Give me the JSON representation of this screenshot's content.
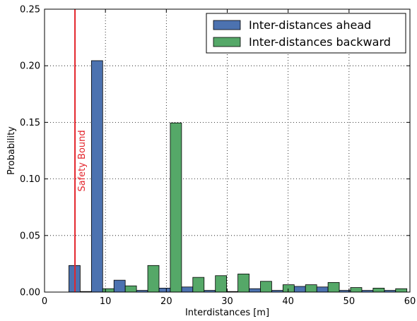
{
  "chart_data": {
    "type": "bar",
    "xlabel": "Interdistances [m]",
    "ylabel": "Probability",
    "xlim": [
      0,
      60
    ],
    "ylim": [
      0,
      0.25
    ],
    "xticks": [
      "0",
      "10",
      "20",
      "30",
      "40",
      "50",
      "60"
    ],
    "yticks": [
      "0.00",
      "0.05",
      "0.10",
      "0.15",
      "0.20",
      "0.25"
    ],
    "grid": true,
    "legend_position": "top-right",
    "bin_edges": [
      4,
      7.7,
      11.4,
      15.1,
      18.8,
      22.5,
      26.2,
      29.9,
      33.6,
      37.3,
      41.0,
      44.7,
      48.4,
      52.1,
      55.8,
      59.5
    ],
    "series": [
      {
        "name": "Inter-distances ahead",
        "color": "#4c72b0",
        "values": [
          0.0235,
          0.2045,
          0.0105,
          0.0015,
          0.0035,
          0.0045,
          0.0015,
          0.0005,
          0.003,
          0.0015,
          0.005,
          0.0045,
          0.0015,
          0.0015,
          0.0015
        ]
      },
      {
        "name": "Inter-distances backward",
        "color": "#55a868",
        "values": [
          0.0005,
          0.003,
          0.0055,
          0.0235,
          0.1495,
          0.013,
          0.0145,
          0.016,
          0.0095,
          0.0065,
          0.0065,
          0.0085,
          0.004,
          0.0035,
          0.003
        ]
      }
    ],
    "annotations": [
      {
        "type": "vline",
        "x": 5,
        "color": "#e3242b",
        "label": "Safety Bound"
      }
    ]
  }
}
